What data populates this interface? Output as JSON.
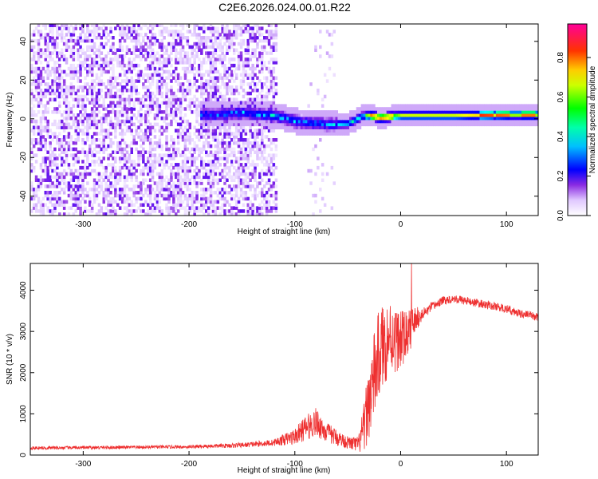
{
  "figure": {
    "title": "C2E6.2026.024.00.01.R22"
  },
  "chart_data": [
    {
      "type": "heatmap",
      "name": "spectrogram",
      "xlabel": "Height of straight line (km)",
      "ylabel": "Frequency (Hz)",
      "xlim": [
        -350,
        130
      ],
      "ylim": [
        -50,
        49
      ],
      "xticks": [
        -300,
        -200,
        -100,
        0,
        100
      ],
      "yticks": [
        -40,
        -20,
        0,
        20,
        40
      ],
      "grid": false,
      "description_of_content": {
        "noise_region_x": [
          -350,
          -118
        ],
        "secondary_noise_x": [
          -90,
          -62
        ],
        "carrier_frequency_hz": 0,
        "carrier_track": [
          {
            "x": -180,
            "f": 1.5
          },
          {
            "x": -150,
            "f": 2.5
          },
          {
            "x": -120,
            "f": 1.0
          },
          {
            "x": -100,
            "f": -2.0
          },
          {
            "x": -70,
            "f": -3.5
          },
          {
            "x": -50,
            "f": -3.0
          },
          {
            "x": -38,
            "f": 0.5
          },
          {
            "x": -30,
            "f": 1.0
          },
          {
            "x": -20,
            "f": 0.0
          },
          {
            "x": 0,
            "f": 1.0
          },
          {
            "x": 50,
            "f": 1.0
          },
          {
            "x": 100,
            "f": 1.5
          },
          {
            "x": 130,
            "f": 1.5
          }
        ],
        "peak_amplitude_locations_x": [
          -25,
          -15,
          80,
          95,
          120
        ]
      },
      "colorbar": {
        "label": "Normalized spectral amplitude",
        "range": [
          0.0,
          0.97
        ],
        "ticks": [
          0.0,
          0.2,
          0.4,
          0.6,
          0.8
        ],
        "tick_labels": [
          "0.0",
          "0.2",
          "0.4",
          "0.6",
          "0.8"
        ],
        "colormap": [
          "#ffffff",
          "#e0c8ff",
          "#8a2be2",
          "#3a00ff",
          "#0000ff",
          "#00ffff",
          "#00ff00",
          "#ffff00",
          "#ff8000",
          "#ff0000",
          "#ff00a0"
        ]
      }
    },
    {
      "type": "line",
      "name": "snr",
      "xlabel": "Height of straight line (km)",
      "ylabel": "SNR (10 * v/v)",
      "xlim": [
        -350,
        130
      ],
      "ylim": [
        0,
        4650
      ],
      "xticks": [
        -300,
        -200,
        -100,
        0,
        100
      ],
      "yticks": [
        0,
        1000,
        2000,
        3000,
        4000
      ],
      "grid": false,
      "series": [
        {
          "color": "#ee3030",
          "x": [
            -350,
            -300,
            -250,
            -200,
            -150,
            -120,
            -100,
            -90,
            -80,
            -70,
            -60,
            -50,
            -40,
            -35,
            -30,
            -25,
            -20,
            -15,
            -10,
            -5,
            0,
            5,
            10,
            15,
            20,
            30,
            40,
            50,
            60,
            70,
            80,
            90,
            100,
            110,
            120,
            130
          ],
          "y": [
            170,
            180,
            190,
            200,
            240,
            300,
            450,
            650,
            800,
            550,
            420,
            300,
            250,
            600,
            1300,
            1900,
            2500,
            2700,
            2900,
            2800,
            2800,
            2900,
            3100,
            3300,
            3400,
            3600,
            3750,
            3800,
            3750,
            3700,
            3650,
            3600,
            3550,
            3450,
            3400,
            3350
          ],
          "noise_amplitude": [
            40,
            40,
            40,
            40,
            60,
            80,
            200,
            300,
            350,
            250,
            200,
            150,
            200,
            600,
            900,
            1100,
            1100,
            1000,
            900,
            800,
            700,
            600,
            500,
            300,
            150,
            120,
            100,
            100,
            100,
            100,
            100,
            100,
            100,
            100,
            100,
            100
          ]
        }
      ]
    }
  ]
}
